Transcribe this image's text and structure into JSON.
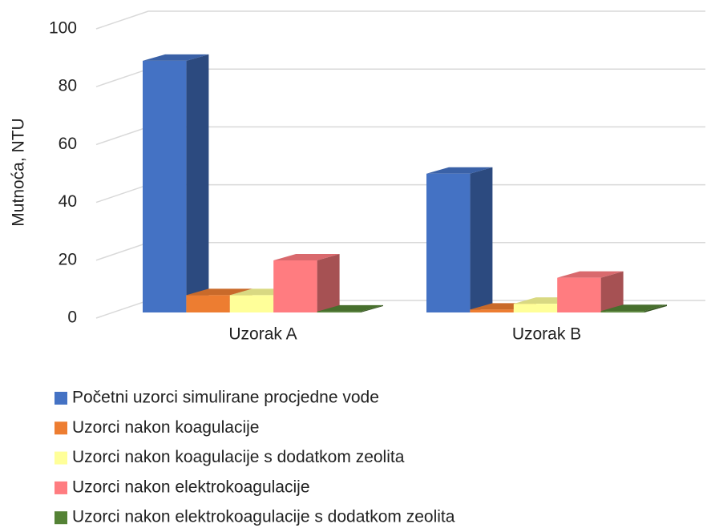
{
  "chart_data": {
    "type": "bar3d",
    "y_label": "Mutnoća, NTU",
    "categories": [
      "Uzorak A",
      "Uzorak B"
    ],
    "series": [
      {
        "name": "Početni uzorci simulirane procjedne vode",
        "color": "#4472c4",
        "values": [
          87,
          48
        ]
      },
      {
        "name": "Uzorci nakon koagulacije",
        "color": "#ed7d31",
        "values": [
          6,
          1
        ]
      },
      {
        "name": "Uzorci nakon koagulacije s dodatkom zeolita",
        "color": "#ffff99",
        "values": [
          6,
          3
        ]
      },
      {
        "name": "Uzorci nakon elektrokoagulacije",
        "color": "#ff7c80",
        "values": [
          18,
          12
        ]
      },
      {
        "name": "Uzorci nakon elektrokoagulacije s dodatkom zeolita",
        "color": "#548235",
        "values": [
          0.3,
          0.5
        ]
      }
    ],
    "ylim": [
      0,
      100
    ],
    "yticks": [
      0,
      20,
      40,
      60,
      80,
      100
    ],
    "grid": true,
    "legend": "bottom"
  }
}
